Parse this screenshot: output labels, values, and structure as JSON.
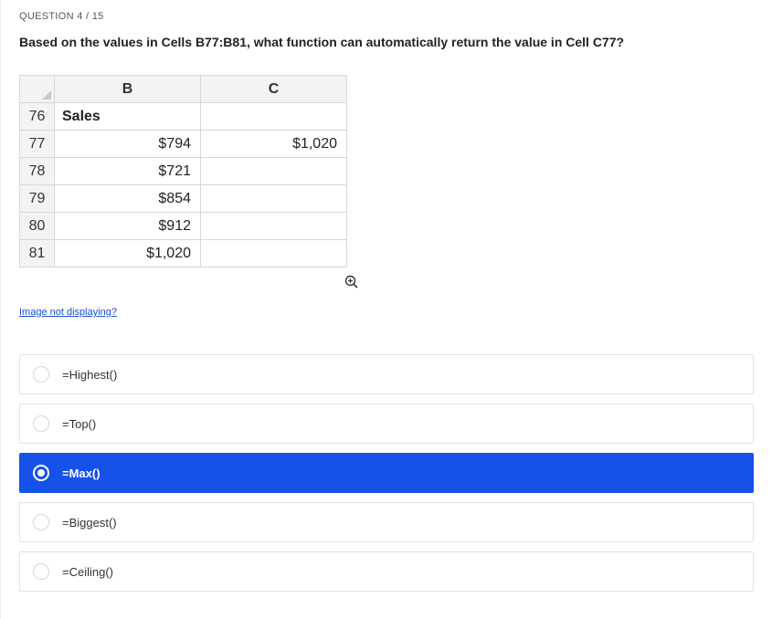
{
  "counter": "QUESTION 4 / 15",
  "question": "Based on the values in Cells B77:B81, what function can automatically return the value in Cell C77?",
  "spreadsheet": {
    "columns": [
      "B",
      "C"
    ],
    "rows": [
      {
        "num": "76",
        "b": "Sales",
        "b_align": "left",
        "c": ""
      },
      {
        "num": "77",
        "b": "$794",
        "b_align": "right",
        "c": "$1,020"
      },
      {
        "num": "78",
        "b": "$721",
        "b_align": "right",
        "c": ""
      },
      {
        "num": "79",
        "b": "$854",
        "b_align": "right",
        "c": ""
      },
      {
        "num": "80",
        "b": "$912",
        "b_align": "right",
        "c": ""
      },
      {
        "num": "81",
        "b": "$1,020",
        "b_align": "right",
        "c": ""
      }
    ]
  },
  "image_link": "Image not displaying?",
  "options": [
    {
      "label": "=Highest()",
      "selected": false
    },
    {
      "label": "=Top()",
      "selected": false
    },
    {
      "label": "=Max()",
      "selected": true
    },
    {
      "label": "=Biggest()",
      "selected": false
    },
    {
      "label": "=Ceiling()",
      "selected": false
    }
  ],
  "colors": {
    "selected_bg": "#1651e8"
  }
}
